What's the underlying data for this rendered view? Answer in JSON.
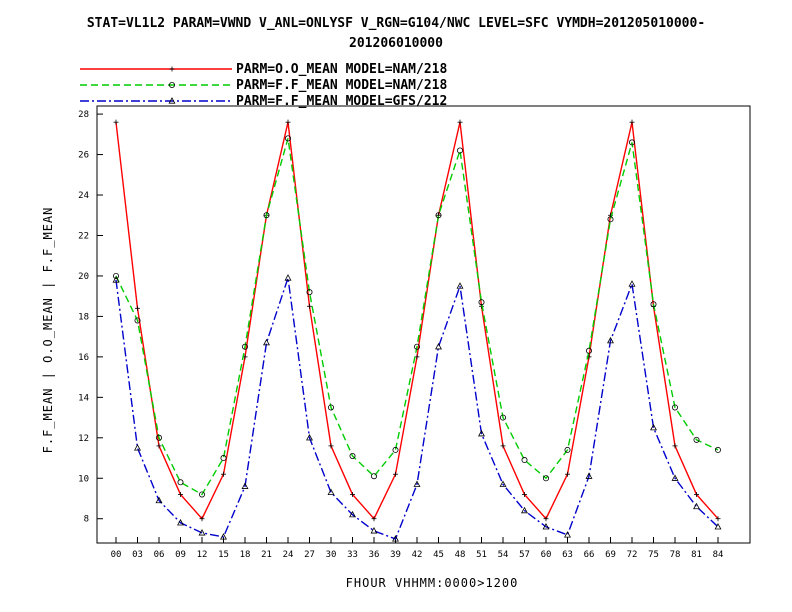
{
  "title_line1": "STAT=VL1L2 PARAM=VWND V_ANL=ONLYSF V_RGN=G104/NWC LEVEL=SFC VYMDH=201205010000-",
  "title_line2": "201206010000",
  "chart_data": {
    "type": "line",
    "xlabel": "FHOUR VHHMM:0000>1200",
    "ylabel": "F.F_MEAN | O.O_MEAN | F.F_MEAN",
    "categories": [
      "00",
      "03",
      "06",
      "09",
      "12",
      "15",
      "18",
      "21",
      "24",
      "27",
      "30",
      "33",
      "36",
      "39",
      "42",
      "45",
      "48",
      "51",
      "54",
      "57",
      "60",
      "63",
      "66",
      "69",
      "72",
      "75",
      "78",
      "81",
      "84"
    ],
    "ylim": [
      6.8,
      28.4
    ],
    "yticks": [
      "8",
      "10",
      "12",
      "14",
      "16",
      "18",
      "20",
      "22",
      "24",
      "26",
      "28"
    ],
    "legend_position": "top",
    "grid": false,
    "series": [
      {
        "name": "PARM=O.O_MEAN MODEL=NAM/218",
        "color": "#ff0000",
        "dash": "solid",
        "marker": "plus",
        "values": [
          27.6,
          18.4,
          11.6,
          9.2,
          8.0,
          10.2,
          16.0,
          23.0,
          27.6,
          18.5,
          11.6,
          9.2,
          8.0,
          10.2,
          16.0,
          23.0,
          27.6,
          18.5,
          11.6,
          9.2,
          8.0,
          10.2,
          16.0,
          23.0,
          27.6,
          18.5,
          11.6,
          9.2,
          8.0
        ]
      },
      {
        "name": "PARM=F.F_MEAN MODEL=NAM/218",
        "color": "#00cc00",
        "dash": "dashed",
        "marker": "circle",
        "values": [
          20.0,
          17.8,
          12.0,
          9.8,
          9.2,
          11.0,
          16.5,
          23.0,
          26.8,
          19.2,
          13.5,
          11.1,
          10.1,
          11.4,
          16.5,
          23.0,
          26.2,
          18.7,
          13.0,
          10.9,
          10.0,
          11.4,
          16.3,
          22.8,
          26.6,
          18.6,
          13.5,
          11.9,
          11.4
        ]
      },
      {
        "name": "PARM=F.F_MEAN MODEL=GFS/212",
        "color": "#0000cc",
        "dash": "dashdot",
        "marker": "triangle",
        "values": [
          19.8,
          11.5,
          8.9,
          7.8,
          7.3,
          7.1,
          9.6,
          16.7,
          19.9,
          12.0,
          9.3,
          8.2,
          7.4,
          7.0,
          9.7,
          16.5,
          19.5,
          12.2,
          9.7,
          8.4,
          7.6,
          7.2,
          10.1,
          16.8,
          19.6,
          12.5,
          10.0,
          8.6,
          7.6
        ]
      }
    ]
  }
}
